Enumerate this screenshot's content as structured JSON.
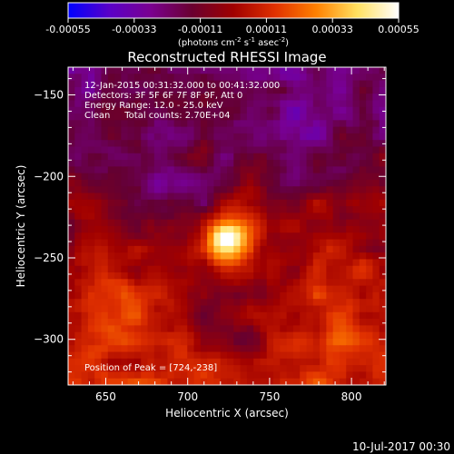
{
  "colorbar": {
    "ticks": [
      "-0.00055",
      "-0.00033",
      "-0.00011",
      "0.00011",
      "0.00033",
      "0.00055"
    ],
    "unit_main": "(photons cm",
    "unit_exp1": "-2",
    "unit_s": " s",
    "unit_exp2": "-1",
    "unit_asec": " asec",
    "unit_exp3": "-2",
    "unit_close": ")",
    "stops": [
      "#0000ff",
      "#5a00c8",
      "#7a0090",
      "#6a0030",
      "#a00000",
      "#e03000",
      "#ff8000",
      "#ffe060",
      "#ffffff"
    ]
  },
  "chart_data": {
    "type": "heatmap",
    "title": "Reconstructed RHESSI Image",
    "xlabel": "Heliocentric X (arcsec)",
    "ylabel": "Heliocentric Y (arcsec)",
    "xlim": [
      627,
      821
    ],
    "ylim": [
      -328,
      -133
    ],
    "xticks": [
      650,
      700,
      750,
      800
    ],
    "yticks": [
      -150,
      -200,
      -250,
      -300
    ],
    "info_lines": [
      "12-Jan-2015 00:31:32.000 to 00:41:32.000",
      "Detectors: 3F 5F 6F 7F 8F 9F, Att 0",
      "Energy Range: 12.0 - 25.0 keV",
      "Clean     Total counts: 2.70E+04"
    ],
    "peak_label": "Position of Peak = [724,-238]",
    "peak": [
      724,
      -238
    ],
    "colorbar_range": [
      -0.00055,
      0.00055
    ]
  },
  "footer": {
    "date": "10-Jul-2017 00:30"
  }
}
